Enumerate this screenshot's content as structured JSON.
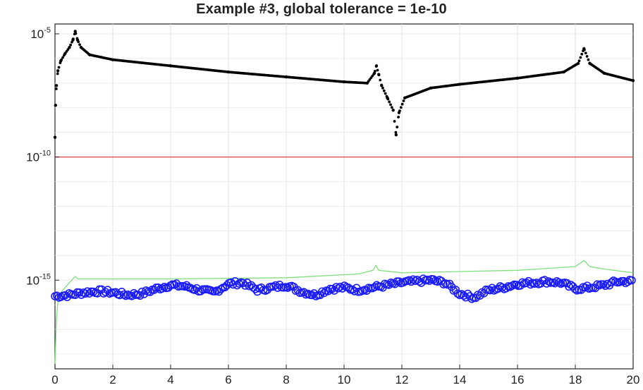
{
  "chart_data": {
    "type": "scatter",
    "title": "Example #3, global tolerance = 1e-10",
    "xlabel": "",
    "ylabel": "",
    "x_range": [
      0,
      20
    ],
    "y_scale": "log",
    "y_exponent_range": [
      -18.6,
      -4.6
    ],
    "x_ticks": [
      "0",
      "2",
      "4",
      "6",
      "8",
      "10",
      "12",
      "14",
      "16",
      "18",
      "20"
    ],
    "y_ticks": [
      {
        "base": "10",
        "exp": "-5",
        "value_exp": -5
      },
      {
        "base": "10",
        "exp": "-10",
        "value_exp": -10
      },
      {
        "base": "10",
        "exp": "-15",
        "value_exp": -15
      }
    ],
    "grid": true,
    "legend": "none",
    "series": [
      {
        "style": "black-dots",
        "color": "#000000",
        "points_log10": [
          [
            0.0,
            -9.2
          ],
          [
            0.02,
            -7.9
          ],
          [
            0.05,
            -7.1
          ],
          [
            0.1,
            -6.5
          ],
          [
            0.2,
            -6.1
          ],
          [
            0.35,
            -5.8
          ],
          [
            0.5,
            -5.55
          ],
          [
            0.62,
            -5.25
          ],
          [
            0.7,
            -4.9
          ],
          [
            0.78,
            -5.25
          ],
          [
            0.9,
            -5.55
          ],
          [
            1.2,
            -5.85
          ],
          [
            2,
            -6.05
          ],
          [
            4,
            -6.3
          ],
          [
            6,
            -6.55
          ],
          [
            8,
            -6.75
          ],
          [
            10,
            -6.95
          ],
          [
            10.8,
            -7.0
          ],
          [
            11.05,
            -6.6
          ],
          [
            11.12,
            -6.3
          ],
          [
            11.2,
            -6.65
          ],
          [
            11.3,
            -7.1
          ],
          [
            11.5,
            -7.6
          ],
          [
            11.7,
            -8.1
          ],
          [
            11.8,
            -9.1
          ],
          [
            11.9,
            -8.2
          ],
          [
            12.1,
            -7.6
          ],
          [
            13,
            -7.2
          ],
          [
            14,
            -7.05
          ],
          [
            16,
            -6.8
          ],
          [
            17.6,
            -6.55
          ],
          [
            18.1,
            -6.2
          ],
          [
            18.3,
            -5.6
          ],
          [
            18.5,
            -6.2
          ],
          [
            19,
            -6.6
          ],
          [
            20,
            -6.9
          ]
        ]
      },
      {
        "style": "red-line",
        "color": "#e05a5a",
        "y_log10": -10
      },
      {
        "style": "green-line",
        "color": "#7ee07e",
        "points_log10": [
          [
            0.0,
            -18.4
          ],
          [
            0.05,
            -16.6
          ],
          [
            0.1,
            -15.9
          ],
          [
            0.2,
            -15.5
          ],
          [
            0.5,
            -15.1
          ],
          [
            0.7,
            -14.85
          ],
          [
            0.8,
            -14.95
          ],
          [
            1.0,
            -14.95
          ],
          [
            4,
            -14.95
          ],
          [
            8,
            -14.9
          ],
          [
            10.5,
            -14.75
          ],
          [
            11.0,
            -14.6
          ],
          [
            11.1,
            -14.4
          ],
          [
            11.2,
            -14.6
          ],
          [
            12,
            -14.7
          ],
          [
            14,
            -14.65
          ],
          [
            16,
            -14.6
          ],
          [
            18.0,
            -14.45
          ],
          [
            18.3,
            -14.2
          ],
          [
            18.5,
            -14.45
          ],
          [
            19,
            -14.55
          ],
          [
            20,
            -14.7
          ]
        ]
      },
      {
        "style": "blue-circles",
        "color": "#1a1aff",
        "points_log10": [
          [
            0.0,
            -15.65
          ],
          [
            0.5,
            -15.6
          ],
          [
            1,
            -15.5
          ],
          [
            1.5,
            -15.45
          ],
          [
            2,
            -15.5
          ],
          [
            2.5,
            -15.6
          ],
          [
            3,
            -15.55
          ],
          [
            3.5,
            -15.35
          ],
          [
            4,
            -15.2
          ],
          [
            4.5,
            -15.25
          ],
          [
            5,
            -15.4
          ],
          [
            5.5,
            -15.5
          ],
          [
            6,
            -15.15
          ],
          [
            6.5,
            -15.1
          ],
          [
            7,
            -15.4
          ],
          [
            7.5,
            -15.3
          ],
          [
            8,
            -15.2
          ],
          [
            8.5,
            -15.45
          ],
          [
            9,
            -15.6
          ],
          [
            9.5,
            -15.35
          ],
          [
            10,
            -15.3
          ],
          [
            10.5,
            -15.4
          ],
          [
            11,
            -15.3
          ],
          [
            11.5,
            -15.2
          ],
          [
            12,
            -15.1
          ],
          [
            12.5,
            -15.05
          ],
          [
            13,
            -15.0
          ],
          [
            13.5,
            -15.1
          ],
          [
            14,
            -15.55
          ],
          [
            14.5,
            -15.7
          ],
          [
            15,
            -15.4
          ],
          [
            15.5,
            -15.3
          ],
          [
            16,
            -15.15
          ],
          [
            16.5,
            -15.1
          ],
          [
            17,
            -15.05
          ],
          [
            17.5,
            -15.1
          ],
          [
            18,
            -15.35
          ],
          [
            18.5,
            -15.3
          ],
          [
            19,
            -15.2
          ],
          [
            19.5,
            -15.05
          ],
          [
            20,
            -15.05
          ]
        ]
      }
    ]
  }
}
